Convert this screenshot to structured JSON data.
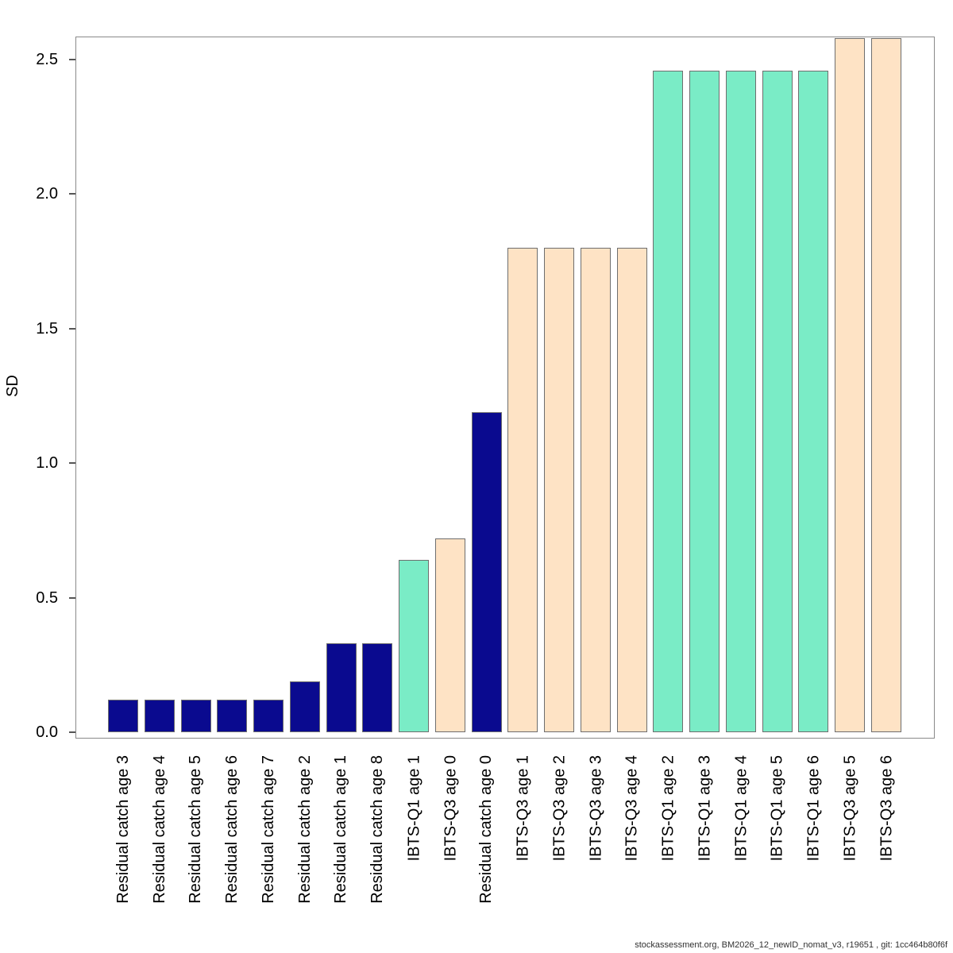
{
  "chart_data": {
    "type": "bar",
    "title": "",
    "xlabel": "",
    "ylabel": "SD",
    "categories": [
      "Residual catch age 3",
      "Residual catch age 4",
      "Residual catch age 5",
      "Residual catch age 6",
      "Residual catch age 7",
      "Residual catch age 2",
      "Residual catch age 1",
      "Residual catch age 8",
      "IBTS-Q1 age 1",
      "IBTS-Q3 age 0",
      "Residual catch age 0",
      "IBTS-Q3 age 1",
      "IBTS-Q3 age 2",
      "IBTS-Q3 age 3",
      "IBTS-Q3 age 4",
      "IBTS-Q1 age 2",
      "IBTS-Q1 age 3",
      "IBTS-Q1 age 4",
      "IBTS-Q1 age 5",
      "IBTS-Q1 age 6",
      "IBTS-Q3 age 5",
      "IBTS-Q3 age 6"
    ],
    "values": [
      0.12,
      0.12,
      0.12,
      0.12,
      0.12,
      0.19,
      0.33,
      0.33,
      0.64,
      0.72,
      1.19,
      1.8,
      1.8,
      1.8,
      1.8,
      2.46,
      2.46,
      2.46,
      2.46,
      2.46,
      2.58,
      2.58
    ],
    "bar_groups": [
      "residual_catch",
      "residual_catch",
      "residual_catch",
      "residual_catch",
      "residual_catch",
      "residual_catch",
      "residual_catch",
      "residual_catch",
      "ibts_q1",
      "ibts_q3",
      "residual_catch",
      "ibts_q3",
      "ibts_q3",
      "ibts_q3",
      "ibts_q3",
      "ibts_q1",
      "ibts_q1",
      "ibts_q1",
      "ibts_q1",
      "ibts_q1",
      "ibts_q3",
      "ibts_q3"
    ],
    "colors": {
      "residual_catch": "#0a0a8f",
      "ibts_q1": "#7aecc6",
      "ibts_q3": "#fee3c5"
    },
    "bar_border_color": "#6e6e6e",
    "ytick_labels": [
      "0.0",
      "0.5",
      "1.0",
      "1.5",
      "2.0",
      "2.5"
    ],
    "yticks": [
      0.0,
      0.5,
      1.0,
      1.5,
      2.0,
      2.5
    ],
    "ylim": [
      0,
      2.59
    ],
    "grid": false,
    "legend": null
  },
  "footer": {
    "caption": "stockassessment.org, BM2026_12_newID_nomat_v3, r19651 , git: 1cc464b80f6f"
  }
}
